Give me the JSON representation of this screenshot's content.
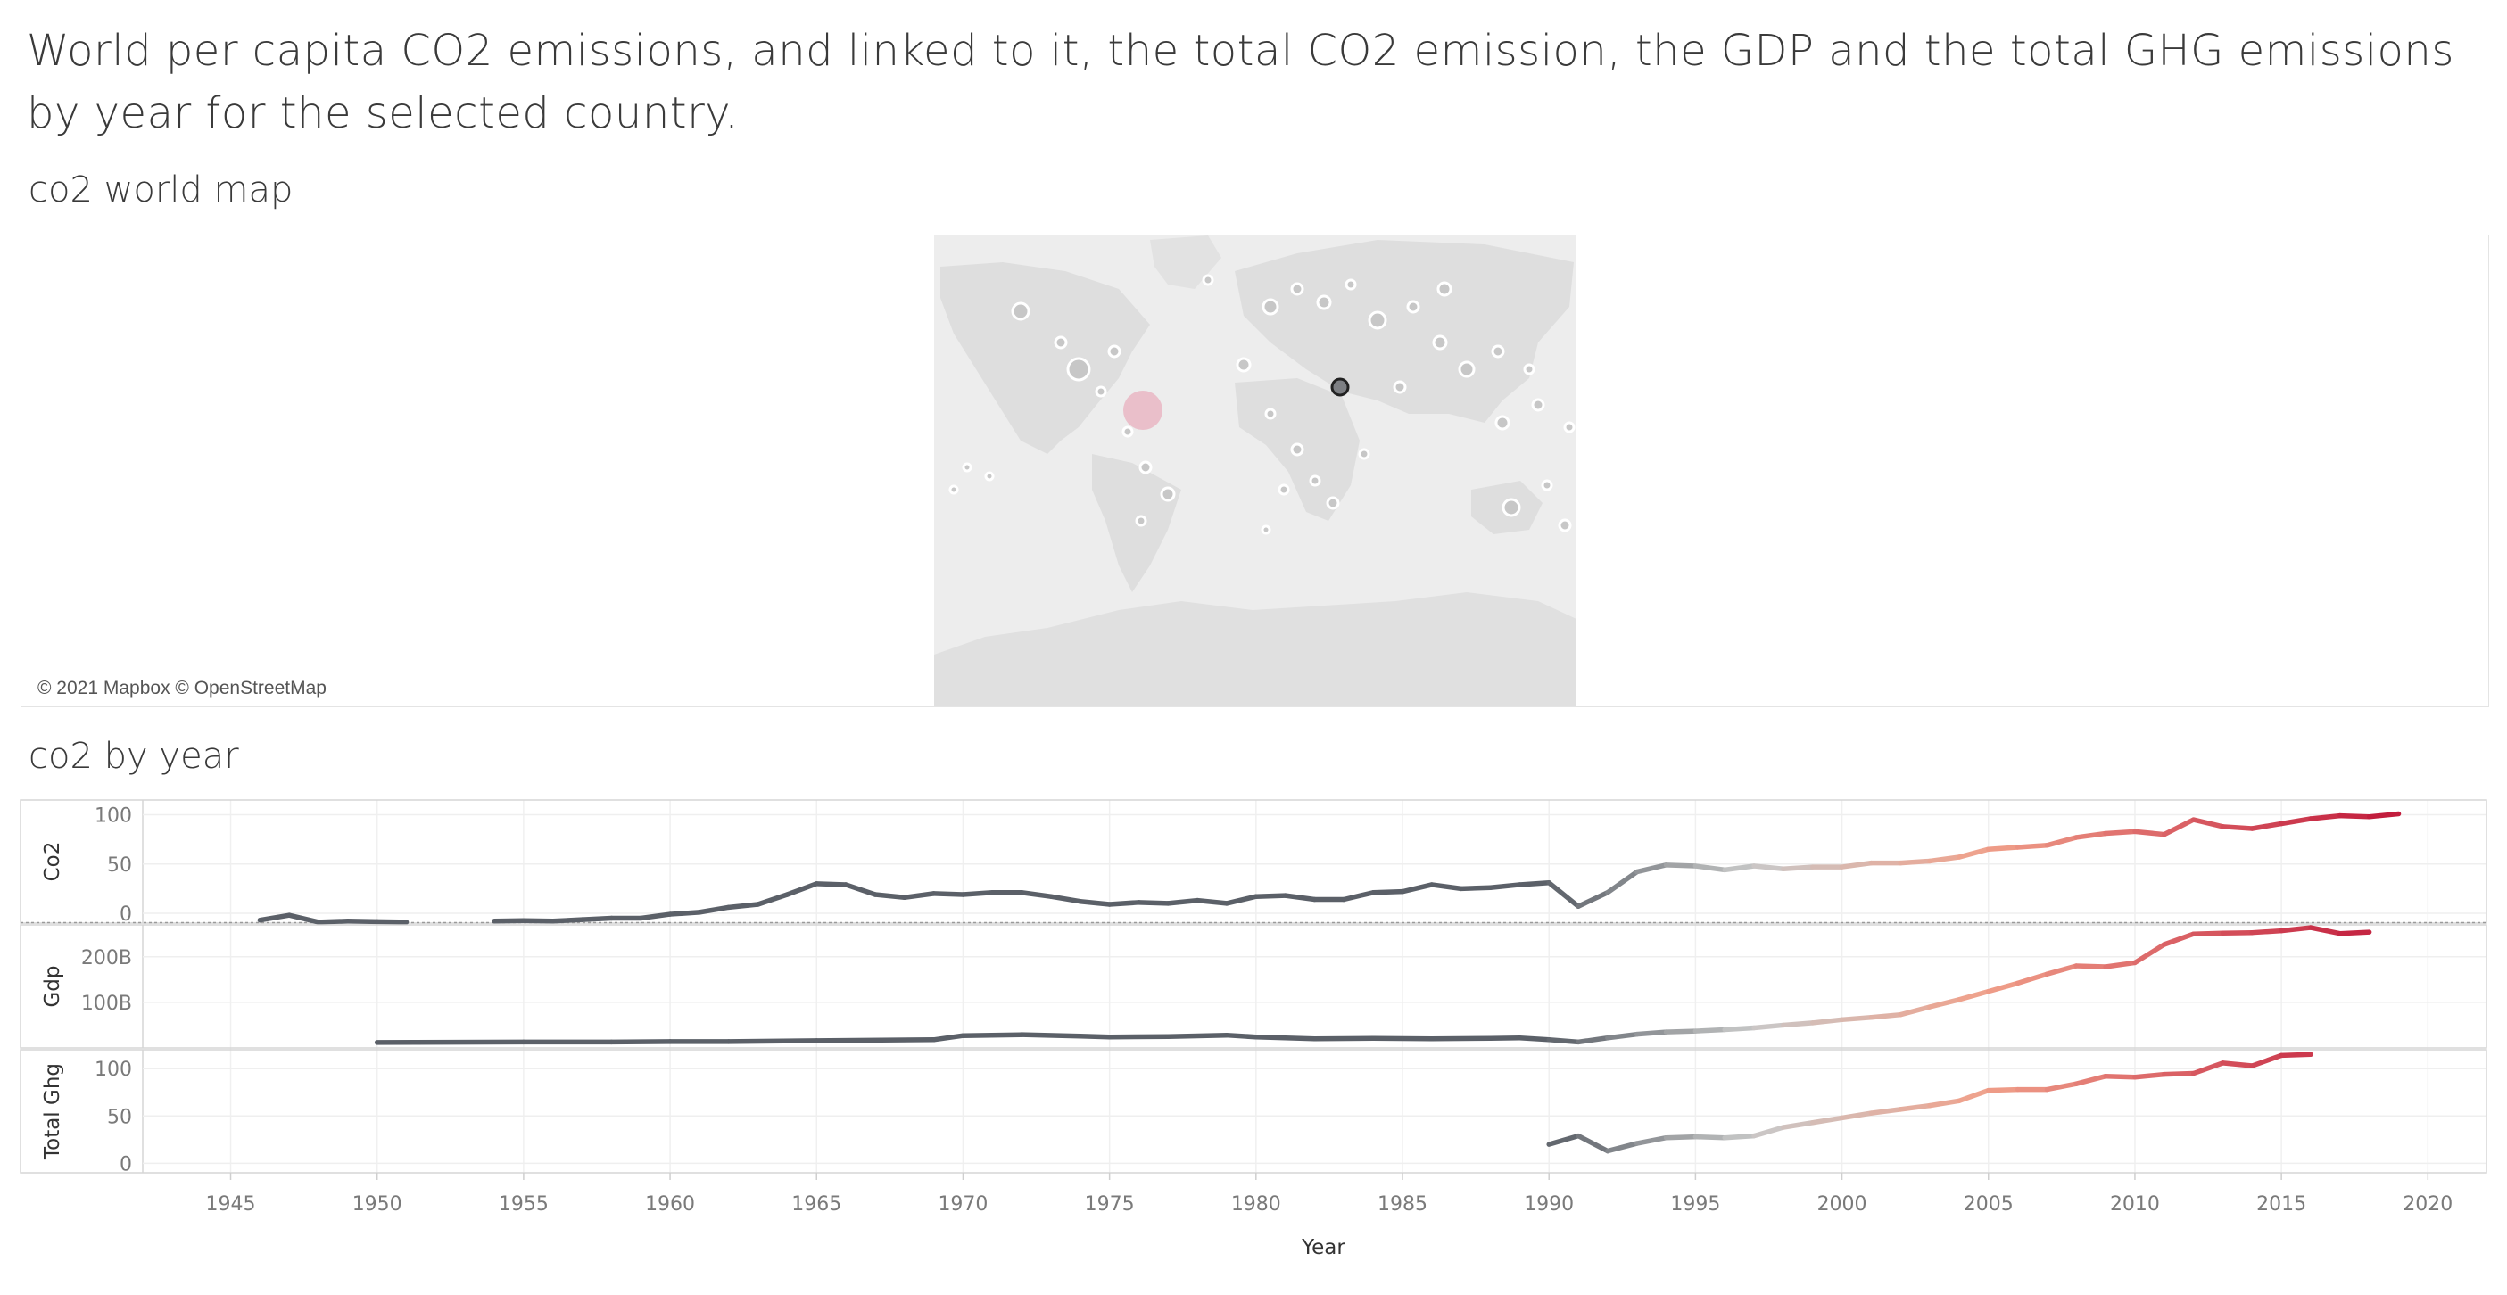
{
  "page": {
    "title": "World per capita CO2 emissions, and linked to it, the total CO2 emission, the GDP and the total GHG emissions by year for the selected country.",
    "map_title": "co2 world map",
    "chart_title": "co2 by year",
    "map_attribution": "© 2021 Mapbox © OpenStreetMap"
  },
  "colors": {
    "dark": "#5b6068",
    "mid": "#c9c9c9",
    "light": "#f0a08a",
    "red": "#c0183a",
    "highlight_bubble": "#e8b3c0",
    "selected_marker": "#7d7f83"
  },
  "chart_data": {
    "type": "line",
    "xlabel": "Year",
    "x_ticks": [
      1945,
      1950,
      1955,
      1960,
      1965,
      1970,
      1975,
      1980,
      1985,
      1990,
      1995,
      2000,
      2005,
      2010,
      2015,
      2020
    ],
    "xlim": [
      1942,
      2022
    ],
    "panels": [
      {
        "ylabel": "Co2",
        "ylim": [
          -10,
          115
        ],
        "y_ticks": [
          0,
          50,
          100
        ],
        "y_tick_labels": [
          "0",
          "50",
          "100"
        ],
        "zero_line": true,
        "segments": [
          [
            [
              1946,
              -7
            ],
            [
              1947,
              -2
            ],
            [
              1948,
              -9
            ],
            [
              1949,
              -8
            ],
            [
              1950,
              -8.5
            ],
            [
              1951,
              -9
            ]
          ],
          [
            [
              1954,
              -8
            ],
            [
              1955,
              -7.5
            ],
            [
              1956,
              -8
            ],
            [
              1957,
              -6.5
            ],
            [
              1958,
              -5
            ],
            [
              1959,
              -5
            ],
            [
              1960,
              -1
            ],
            [
              1961,
              1
            ],
            [
              1962,
              6
            ],
            [
              1963,
              9
            ],
            [
              1964,
              19
            ],
            [
              1965,
              30
            ],
            [
              1966,
              29
            ],
            [
              1967,
              19
            ],
            [
              1968,
              16
            ],
            [
              1969,
              20
            ],
            [
              1970,
              19
            ],
            [
              1971,
              21
            ],
            [
              1972,
              21
            ],
            [
              1973,
              17
            ],
            [
              1974,
              12
            ],
            [
              1975,
              9
            ],
            [
              1976,
              11
            ],
            [
              1977,
              10
            ],
            [
              1978,
              13
            ],
            [
              1979,
              10
            ],
            [
              1980,
              17
            ],
            [
              1981,
              18
            ],
            [
              1982,
              14
            ],
            [
              1983,
              14
            ],
            [
              1984,
              21
            ],
            [
              1985,
              22
            ],
            [
              1986,
              29
            ],
            [
              1987,
              25
            ],
            [
              1988,
              26
            ],
            [
              1989,
              29
            ],
            [
              1990,
              31
            ],
            [
              1991,
              7
            ],
            [
              1992,
              21
            ],
            [
              1993,
              42
            ],
            [
              1994,
              49
            ],
            [
              1995,
              48
            ],
            [
              1996,
              44
            ],
            [
              1997,
              48
            ],
            [
              1998,
              45
            ],
            [
              1999,
              47
            ],
            [
              2000,
              47
            ],
            [
              2001,
              51
            ],
            [
              2002,
              51
            ],
            [
              2003,
              53
            ],
            [
              2004,
              57
            ],
            [
              2005,
              65
            ],
            [
              2006,
              67
            ],
            [
              2007,
              69
            ],
            [
              2008,
              77
            ],
            [
              2009,
              81
            ],
            [
              2010,
              83
            ],
            [
              2011,
              80
            ],
            [
              2012,
              95
            ],
            [
              2013,
              88
            ],
            [
              2014,
              86
            ],
            [
              2015,
              91
            ],
            [
              2016,
              96
            ],
            [
              2017,
              99
            ],
            [
              2018,
              98
            ],
            [
              2019,
              101
            ]
          ]
        ]
      },
      {
        "ylabel": "Gdp",
        "ylim": [
          0,
          270
        ],
        "y_ticks": [
          100,
          200
        ],
        "y_tick_labels": [
          "100B",
          "200B"
        ],
        "zero_line": false,
        "segments": [
          [
            [
              1950,
              12
            ],
            [
              1955,
              13
            ],
            [
              1958,
              13
            ],
            [
              1960,
              14
            ],
            [
              1962,
              14
            ],
            [
              1965,
              16
            ],
            [
              1969,
              18
            ],
            [
              1970,
              27
            ],
            [
              1972,
              29
            ],
            [
              1974,
              26
            ],
            [
              1975,
              24
            ],
            [
              1977,
              25
            ],
            [
              1979,
              28
            ],
            [
              1980,
              24
            ],
            [
              1982,
              20
            ],
            [
              1984,
              21
            ],
            [
              1986,
              20
            ],
            [
              1988,
              21
            ],
            [
              1989,
              22
            ],
            [
              1990,
              18
            ],
            [
              1991,
              13
            ],
            [
              1992,
              22
            ],
            [
              1993,
              30
            ],
            [
              1994,
              35
            ],
            [
              1995,
              37
            ],
            [
              1996,
              40
            ],
            [
              1997,
              44
            ],
            [
              1998,
              50
            ],
            [
              1999,
              55
            ],
            [
              2000,
              62
            ],
            [
              2001,
              67
            ],
            [
              2002,
              73
            ],
            [
              2003,
              90
            ],
            [
              2004,
              106
            ],
            [
              2005,
              124
            ],
            [
              2006,
              142
            ],
            [
              2007,
              162
            ],
            [
              2008,
              180
            ],
            [
              2009,
              178
            ],
            [
              2010,
              187
            ],
            [
              2011,
              227
            ],
            [
              2012,
              250
            ],
            [
              2013,
              252
            ],
            [
              2014,
              253
            ],
            [
              2015,
              257
            ],
            [
              2016,
              264
            ],
            [
              2017,
              251
            ],
            [
              2018,
              254
            ]
          ]
        ]
      },
      {
        "ylabel": "Total Ghg",
        "ylim": [
          -10,
          120
        ],
        "y_ticks": [
          0,
          50,
          100
        ],
        "y_tick_labels": [
          "0",
          "50",
          "100"
        ],
        "zero_line": false,
        "segments": [
          [
            [
              1990,
              20
            ],
            [
              1991,
              29
            ],
            [
              1992,
              13
            ],
            [
              1993,
              21
            ],
            [
              1994,
              27
            ],
            [
              1995,
              28
            ],
            [
              1996,
              27
            ],
            [
              1997,
              29
            ],
            [
              1998,
              38
            ],
            [
              1999,
              43
            ],
            [
              2000,
              48
            ],
            [
              2001,
              53
            ],
            [
              2002,
              57
            ],
            [
              2003,
              61
            ],
            [
              2004,
              66
            ],
            [
              2005,
              77
            ],
            [
              2006,
              78
            ],
            [
              2007,
              78
            ],
            [
              2008,
              84
            ],
            [
              2009,
              92
            ],
            [
              2010,
              91
            ],
            [
              2011,
              94
            ],
            [
              2012,
              95
            ],
            [
              2013,
              106
            ],
            [
              2014,
              103
            ],
            [
              2015,
              114
            ],
            [
              2016,
              115
            ]
          ]
        ]
      }
    ]
  }
}
